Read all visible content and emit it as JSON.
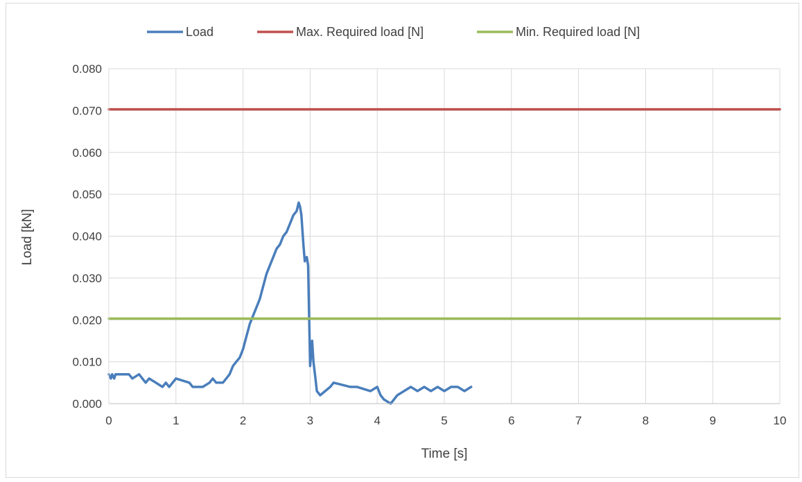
{
  "chart_data": {
    "type": "line",
    "title": "",
    "xlabel": "Time [s]",
    "ylabel": "Load [kN]",
    "xlim": [
      0,
      10
    ],
    "ylim": [
      0,
      0.08
    ],
    "x_ticks": [
      "0",
      "1",
      "2",
      "3",
      "4",
      "5",
      "6",
      "7",
      "8",
      "9",
      "10"
    ],
    "y_ticks": [
      "0.000",
      "0.010",
      "0.020",
      "0.030",
      "0.040",
      "0.050",
      "0.060",
      "0.070",
      "0.080"
    ],
    "grid": true,
    "legend_position": "top",
    "series": [
      {
        "name": "Load",
        "color": "#4a7ebb",
        "x": [
          0,
          0.03,
          0.05,
          0.08,
          0.1,
          0.3,
          0.35,
          0.45,
          0.5,
          0.55,
          0.6,
          0.7,
          0.8,
          0.85,
          0.9,
          1.0,
          1.2,
          1.25,
          1.4,
          1.5,
          1.55,
          1.6,
          1.7,
          1.75,
          1.8,
          1.85,
          1.9,
          1.95,
          2.0,
          2.05,
          2.1,
          2.15,
          2.2,
          2.25,
          2.3,
          2.35,
          2.4,
          2.45,
          2.5,
          2.55,
          2.6,
          2.65,
          2.7,
          2.75,
          2.8,
          2.83,
          2.85,
          2.87,
          2.9,
          2.92,
          2.95,
          2.97,
          3.0,
          3.03,
          3.05,
          3.08,
          3.1,
          3.15,
          3.3,
          3.35,
          3.6,
          3.7,
          3.9,
          4.0,
          4.05,
          4.1,
          4.2,
          4.3,
          4.4,
          4.5,
          4.6,
          4.7,
          4.8,
          4.9,
          5.0,
          5.1,
          5.2,
          5.3,
          5.4
        ],
        "y": [
          0.007,
          0.006,
          0.007,
          0.006,
          0.007,
          0.007,
          0.006,
          0.007,
          0.006,
          0.005,
          0.006,
          0.005,
          0.004,
          0.005,
          0.004,
          0.006,
          0.005,
          0.004,
          0.004,
          0.005,
          0.006,
          0.005,
          0.005,
          0.006,
          0.007,
          0.009,
          0.01,
          0.011,
          0.013,
          0.016,
          0.019,
          0.021,
          0.023,
          0.025,
          0.028,
          0.031,
          0.033,
          0.035,
          0.037,
          0.038,
          0.04,
          0.041,
          0.043,
          0.045,
          0.046,
          0.048,
          0.047,
          0.045,
          0.038,
          0.034,
          0.035,
          0.033,
          0.009,
          0.015,
          0.01,
          0.006,
          0.003,
          0.002,
          0.004,
          0.005,
          0.004,
          0.004,
          0.003,
          0.004,
          0.002,
          0.001,
          0.0,
          0.002,
          0.003,
          0.004,
          0.003,
          0.004,
          0.003,
          0.004,
          0.003,
          0.004,
          0.004,
          0.003,
          0.004
        ]
      },
      {
        "name": "Max. Required load [N]",
        "color": "#c0504d",
        "x": [
          0,
          10
        ],
        "y": [
          0.0703,
          0.0703
        ]
      },
      {
        "name": "Min. Required load [N]",
        "color": "#9bbb59",
        "x": [
          0,
          10
        ],
        "y": [
          0.0203,
          0.0203
        ]
      }
    ]
  }
}
